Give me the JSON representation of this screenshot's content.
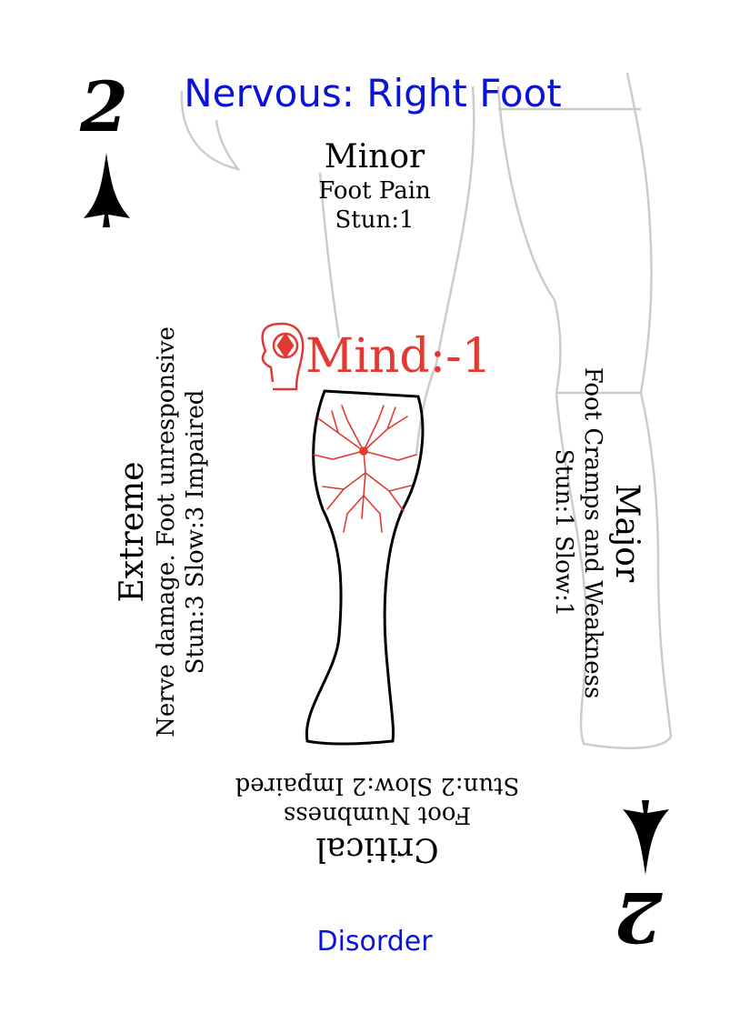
{
  "card": {
    "title": "Nervous: Right Foot",
    "rank": "2",
    "suit_icon": "spade-blade-icon",
    "minor": {
      "tier": "Minor",
      "effect": "Foot Pain",
      "stats": "Stun:1"
    },
    "major": {
      "tier": "Major",
      "effect": "Foot Cramps and Weakness",
      "stats": "Stun:1 Slow:1"
    },
    "critical": {
      "tier": "Critical",
      "effect": "Foot Numbness",
      "stats": "Stun:2 Slow:2 Impaired"
    },
    "extreme": {
      "tier": "Extreme",
      "effect": "Nerve damage. Foot unresponsive",
      "stats": "Stun:3 Slow:3 Impaired"
    },
    "mind": {
      "label": "Mind:-1",
      "icon": "mind-head-icon"
    },
    "footer": "Disorder",
    "colors": {
      "title": "#0a14d8",
      "mind": "#e03a32",
      "leg_outline": "#cccccc",
      "nerve": "#e03a32"
    }
  }
}
